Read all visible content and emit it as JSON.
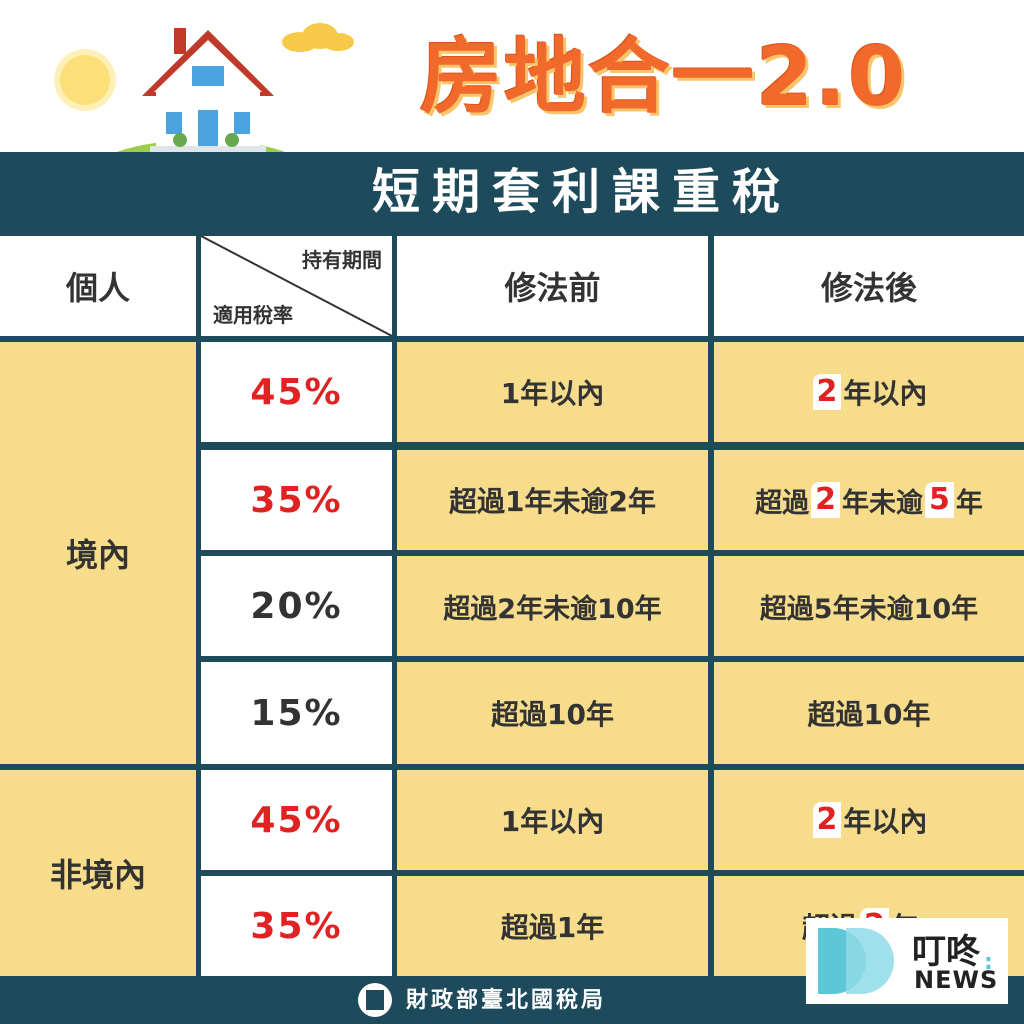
{
  "header": {
    "title": "房地合一2.0"
  },
  "banner": {
    "subtitle": "短期套利課重稅"
  },
  "table": {
    "headers": {
      "category": "個人",
      "diagonal_top": "持有期間",
      "diagonal_bottom": "適用稅率",
      "before": "修法前",
      "after": "修法後"
    },
    "groups": [
      {
        "label": "境內"
      },
      {
        "label": "非境內"
      }
    ],
    "rows": [
      {
        "rate": "45%",
        "before": "1年以內",
        "after": [
          "",
          "2",
          "年以內"
        ]
      },
      {
        "rate": "35%",
        "before": "超過1年未逾2年",
        "after": [
          "超過",
          "2",
          "年未逾",
          "5",
          "年"
        ]
      },
      {
        "rate": "20%",
        "before": "超過2年未逾10年",
        "after": "超過5年未逾10年"
      },
      {
        "rate": "15%",
        "before": "超過10年",
        "after": "超過10年"
      },
      {
        "rate": "45%",
        "before": "1年以內",
        "after": [
          "",
          "2",
          "年以內"
        ]
      },
      {
        "rate": "35%",
        "before": "超過1年",
        "after": [
          "超過",
          "2",
          "年"
        ]
      }
    ]
  },
  "footer": {
    "organization": "財政部臺北國稅局"
  },
  "watermark": {
    "name_cn": "叮咚",
    "name_en": "NEWS",
    "colors": {
      "accent": "#5cc7d6"
    }
  },
  "colors": {
    "banner": "#1d4b5b",
    "cell_yellow": "#f6dc8b",
    "highlight": "#e02222",
    "title": "#f26a2b"
  }
}
